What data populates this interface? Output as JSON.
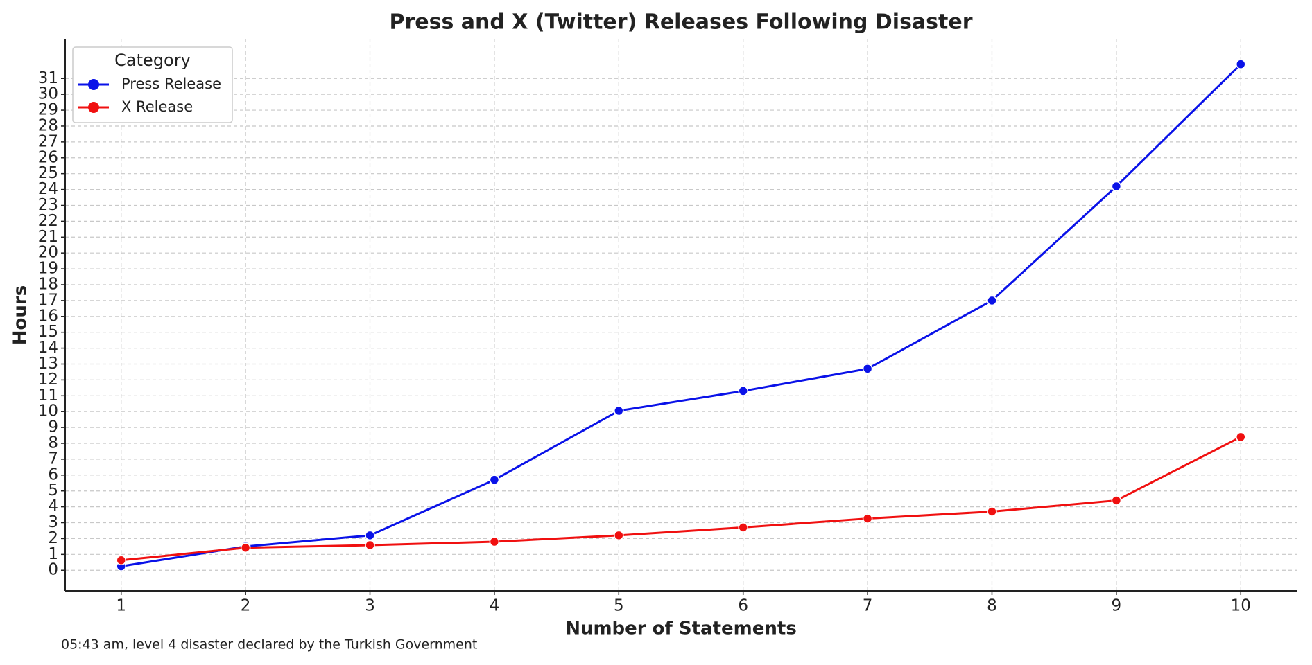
{
  "chart_data": {
    "type": "line",
    "title": "Press and X (Twitter) Releases Following Disaster",
    "x_label": "Number of Statements",
    "y_label": "Hours",
    "note": "05:43 am, level 4 disaster declared by the Turkish Government",
    "legend_title": "Category",
    "legend": "upper left",
    "grid": true,
    "x": [
      1,
      2,
      3,
      4,
      5,
      6,
      7,
      8,
      9,
      10
    ],
    "series": [
      {
        "name": "Press Release",
        "color": "#0a12e8",
        "values": [
          0.25,
          1.5,
          2.2,
          5.7,
          10.05,
          11.3,
          12.7,
          17.0,
          24.2,
          31.9
        ]
      },
      {
        "name": "X Release",
        "color": "#f01010",
        "values": [
          0.63,
          1.42,
          1.58,
          1.8,
          2.2,
          2.7,
          3.26,
          3.7,
          4.4,
          8.4
        ]
      }
    ],
    "xlim": [
      0.55,
      10.45
    ],
    "xticks": [
      1,
      2,
      3,
      4,
      5,
      6,
      7,
      8,
      9,
      10
    ],
    "ylim": [
      -1.3,
      33.5
    ],
    "yticks": [
      0,
      1,
      2,
      3,
      4,
      5,
      6,
      7,
      8,
      9,
      10,
      11,
      12,
      13,
      14,
      15,
      16,
      17,
      18,
      19,
      20,
      21,
      22,
      23,
      24,
      25,
      26,
      27,
      28,
      29,
      30,
      31
    ]
  }
}
